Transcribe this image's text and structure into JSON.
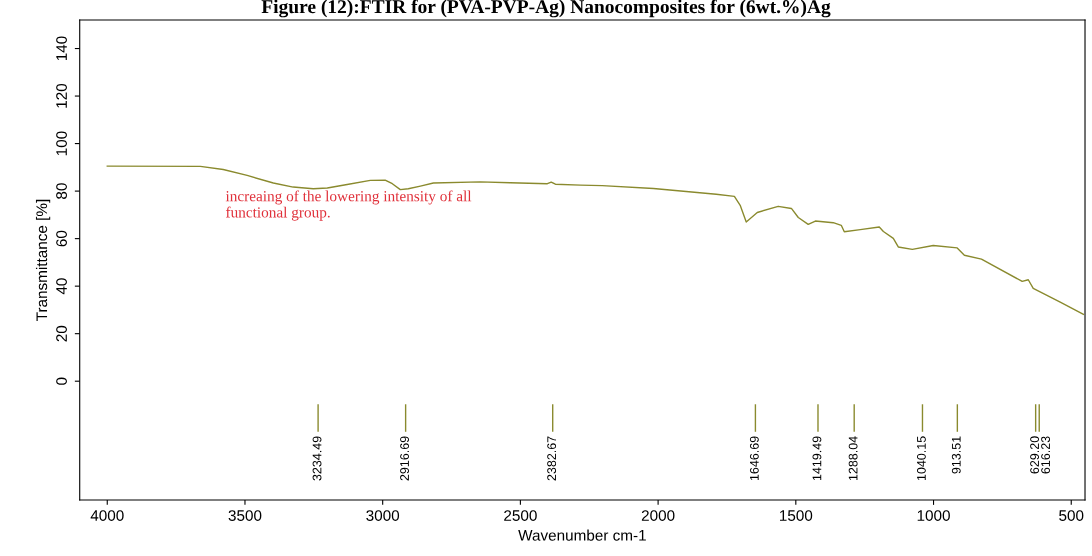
{
  "chart_data": {
    "type": "line",
    "title": "Figure (12):FTIR for (PVA-PVP-Ag) Nanocomposites for (6wt.%)Ag",
    "xlabel": "Wavenumber cm-1",
    "ylabel": "Transmittance [%]",
    "x": [
      4000,
      3662,
      3579,
      3492,
      3397,
      3325,
      3252,
      3201,
      3129,
      3045,
      2991,
      2965,
      2936,
      2907,
      2863,
      2816,
      2646,
      2537,
      2402,
      2388,
      2373,
      2282,
      2203,
      2017,
      1789,
      1723,
      1702,
      1680,
      1640,
      1564,
      1516,
      1491,
      1455,
      1429,
      1364,
      1335,
      1324,
      1266,
      1197,
      1182,
      1146,
      1128,
      1077,
      1001,
      914,
      888,
      826,
      678,
      656,
      638,
      540,
      456
    ],
    "series": [
      {
        "color": "#8a8a2e",
        "values": [
          90.5,
          90.4,
          89.1,
          86.6,
          83.4,
          81.7,
          81.0,
          81.3,
          82.8,
          84.5,
          84.6,
          83.1,
          80.6,
          81,
          82.1,
          83.4,
          83.9,
          83.5,
          83.1,
          83.8,
          82.9,
          82.5,
          82.3,
          81.1,
          78.7,
          77.8,
          74,
          67,
          71,
          73.6,
          72.7,
          68.9,
          66,
          67.4,
          66.7,
          65.6,
          62.9,
          63.8,
          64.9,
          63,
          60.1,
          56.5,
          55.5,
          57.1,
          56.1,
          53,
          51.4,
          42,
          42.7,
          39.1,
          33.3,
          28.2
        ]
      }
    ],
    "xlim": [
      4100,
      450
    ],
    "xticks": [
      4000,
      3500,
      3000,
      2500,
      2000,
      1500,
      1000,
      500
    ],
    "ylim": [
      -50,
      152
    ],
    "yticks": [
      0,
      20,
      40,
      60,
      80,
      100,
      120,
      140
    ],
    "grid": false,
    "legend": false,
    "marker": "none",
    "line_style": "solid",
    "ref_lines": [
      {
        "axis": "x",
        "value": 3234.49,
        "label": "3234.49"
      },
      {
        "axis": "x",
        "value": 2916.69,
        "label": "2916.69"
      },
      {
        "axis": "x",
        "value": 2382.67,
        "label": "2382.67"
      },
      {
        "axis": "x",
        "value": 1646.69,
        "label": "1646.69"
      },
      {
        "axis": "x",
        "value": 1419.49,
        "label": "1419.49"
      },
      {
        "axis": "x",
        "value": 1288.04,
        "label": "1288.04"
      },
      {
        "axis": "x",
        "value": 1040.15,
        "label": "1040.15"
      },
      {
        "axis": "x",
        "value": 913.51,
        "label": "913.51"
      },
      {
        "axis": "x",
        "value": 629.2,
        "label": "629.20"
      },
      {
        "axis": "x",
        "value": 616.23,
        "label": "616.23"
      }
    ],
    "annotations": [
      "increaing of the lowering intensity of all\nfunctional group."
    ]
  }
}
